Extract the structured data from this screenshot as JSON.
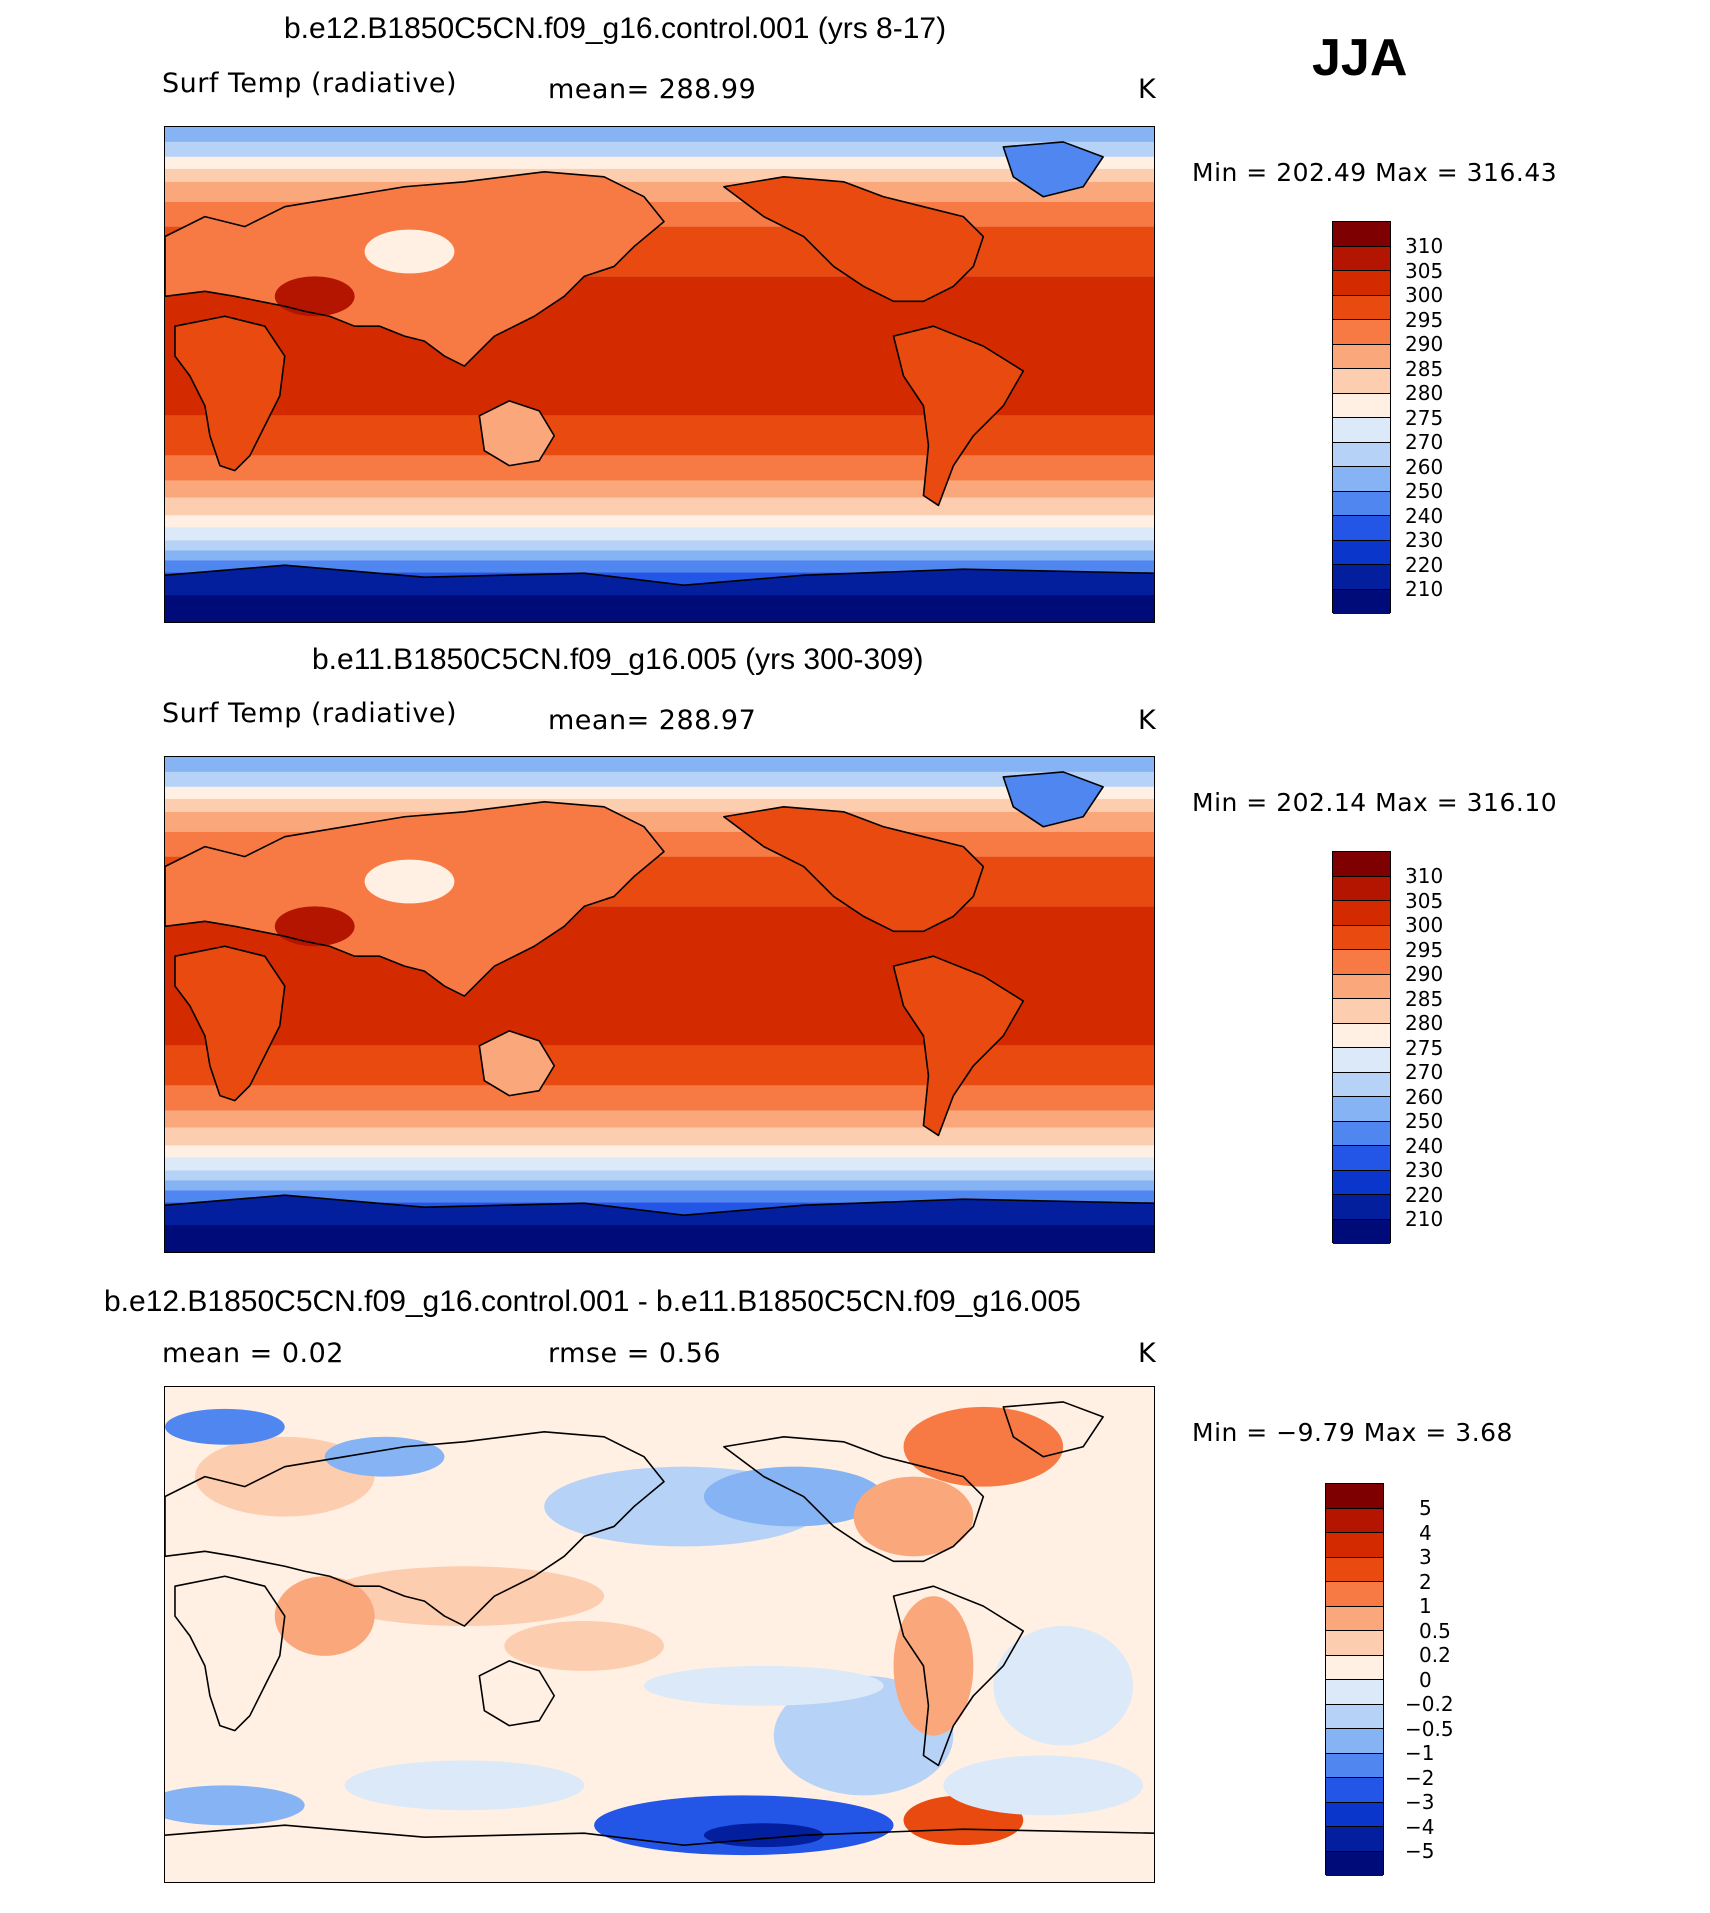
{
  "season": "JJA",
  "colors": {
    "temp_scale": [
      "#7f0000",
      "#b31500",
      "#d42a00",
      "#e84a10",
      "#f77a45",
      "#fba77c",
      "#fdcdb0",
      "#fff0e3",
      "#dbe9f8",
      "#b6d2f6",
      "#86b3f3",
      "#4f86ef",
      "#2356e6",
      "#0b36cc",
      "#031f9e",
      "#000b7a"
    ],
    "diff_scale": [
      "#7f0000",
      "#b31500",
      "#d42a00",
      "#e84a10",
      "#f77a45",
      "#fba77c",
      "#fdcdb0",
      "#fff0e3",
      "#dbe9f8",
      "#b6d2f6",
      "#86b3f3",
      "#4f86ef",
      "#2356e6",
      "#0b36cc",
      "#031f9e",
      "#000b7a"
    ]
  },
  "panels": [
    {
      "title": "b.e12.B1850C5CN.f09_g16.control.001 (yrs 8-17)",
      "left_label": "Surf Temp (radiative)",
      "center_label": "mean=  288.99",
      "units": "K",
      "minmax": "Min  =  202.49  Max  =  316.43",
      "colorbar_labels": [
        "310",
        "305",
        "300",
        "295",
        "290",
        "285",
        "280",
        "275",
        "270",
        "260",
        "250",
        "240",
        "230",
        "220",
        "210"
      ],
      "field": "temperature"
    },
    {
      "title": "b.e11.B1850C5CN.f09_g16.005 (yrs 300-309)",
      "left_label": "Surf Temp (radiative)",
      "center_label": "mean=  288.97",
      "units": "K",
      "minmax": "Min  =  202.14  Max  =  316.10",
      "colorbar_labels": [
        "310",
        "305",
        "300",
        "295",
        "290",
        "285",
        "280",
        "275",
        "270",
        "260",
        "250",
        "240",
        "230",
        "220",
        "210"
      ],
      "field": "temperature"
    },
    {
      "title": "b.e12.B1850C5CN.f09_g16.control.001 - b.e11.B1850C5CN.f09_g16.005",
      "left_label": "mean  =      0.02",
      "center_label": "rmse  =      0.56",
      "units": "K",
      "minmax": "Min  =    −9.79  Max  =       3.68",
      "colorbar_labels": [
        "5",
        "4",
        "3",
        "2",
        "1",
        "0.5",
        "0.2",
        "0",
        "−0.2",
        "−0.5",
        "−1",
        "−2",
        "−3",
        "−4",
        "−5"
      ],
      "field": "difference"
    }
  ]
}
